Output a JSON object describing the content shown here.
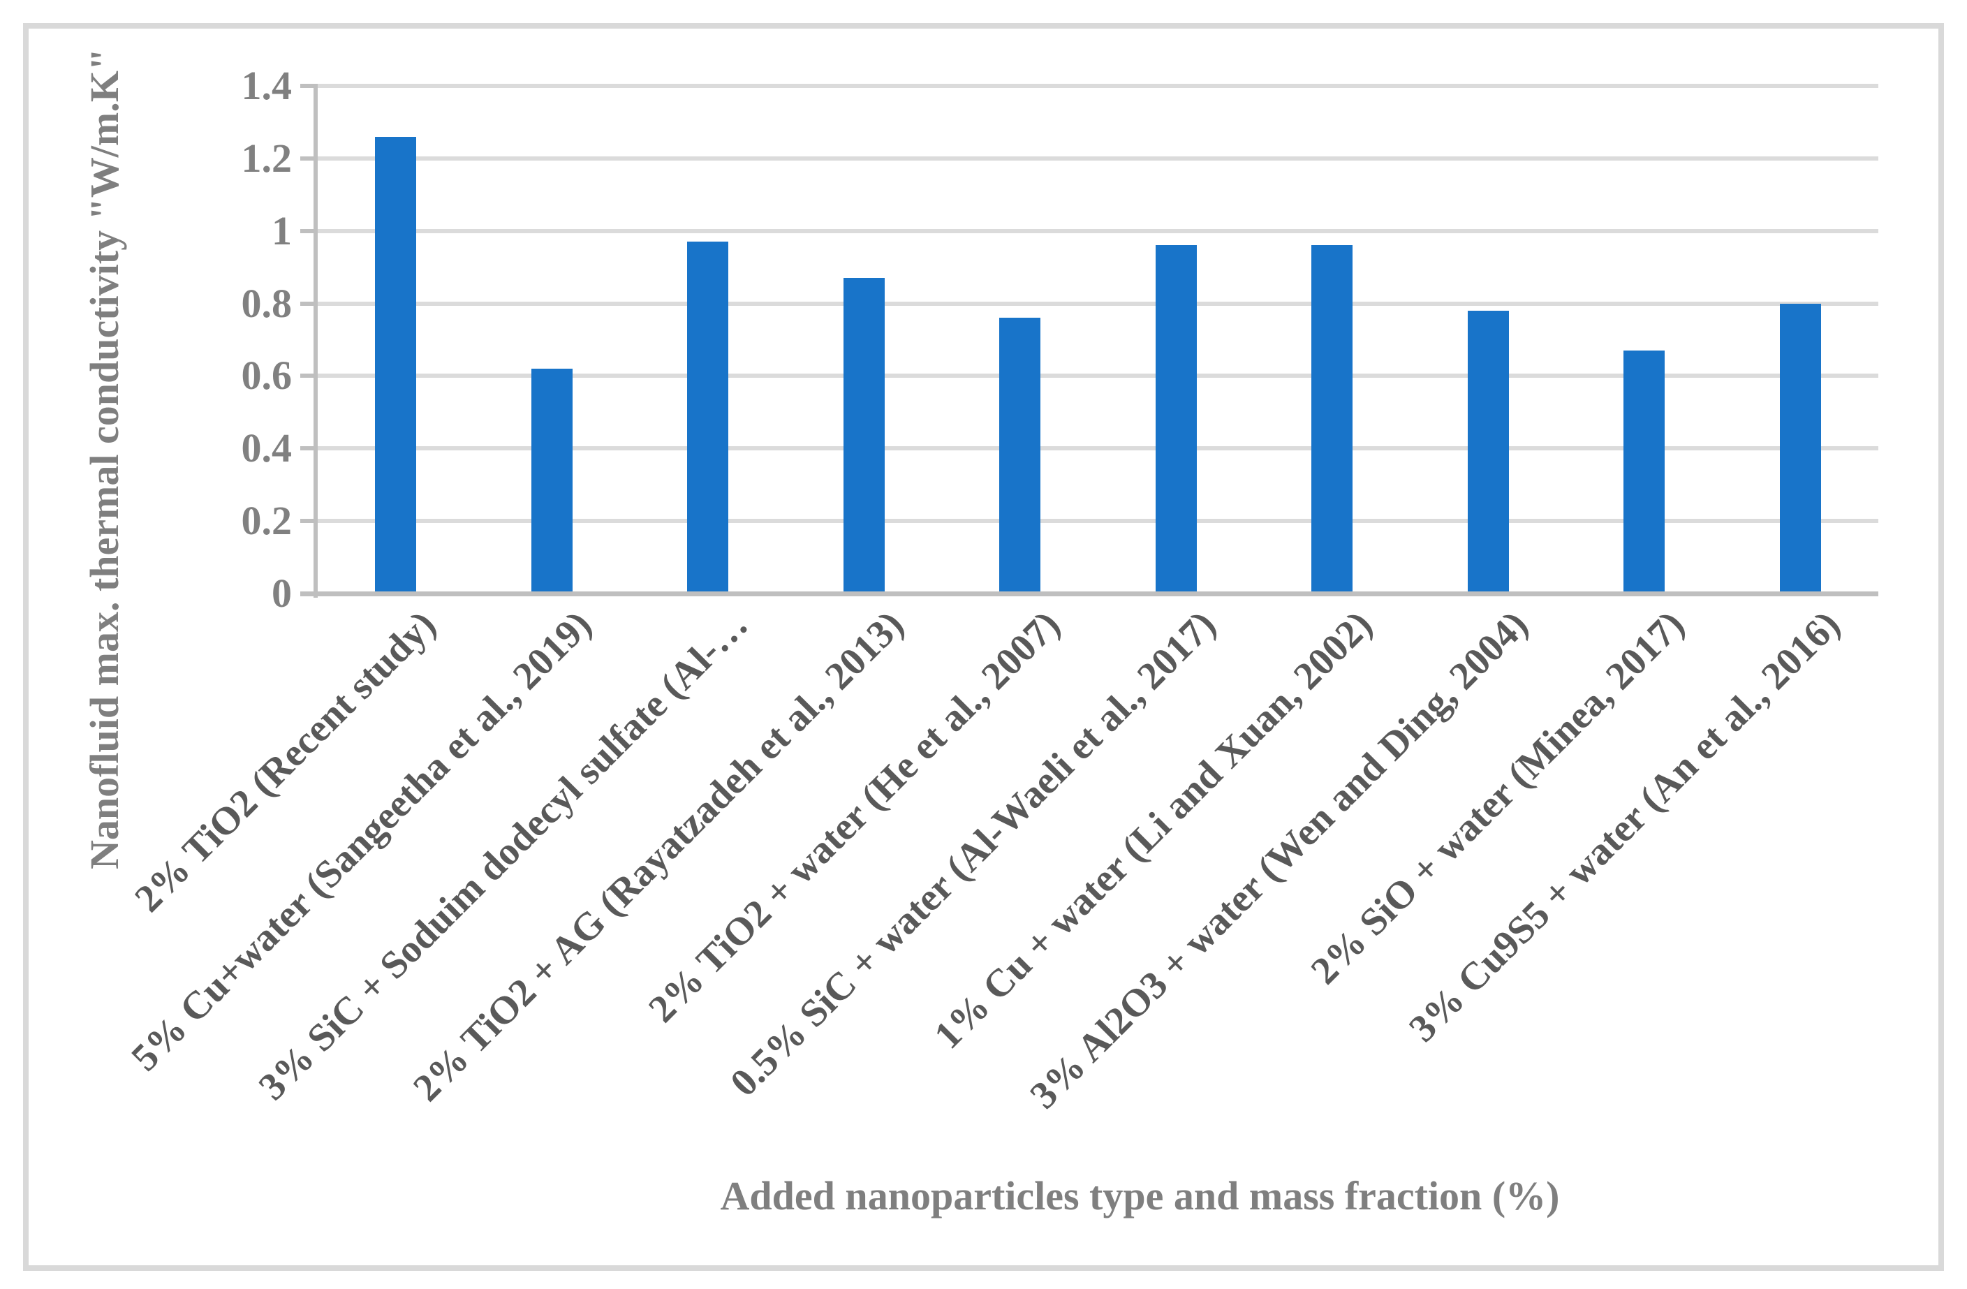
{
  "figure": {
    "background": "#FFFFFF",
    "border_color": "#D9D9D9"
  },
  "chart_data": {
    "type": "bar",
    "title": "",
    "xlabel": "Added nanoparticles type and mass fraction (%)",
    "ylabel": "Nanofluid max. thermal conductivity \"W/m.K\"",
    "categories": [
      "2% TiO2 (Recent study)",
      "5% Cu+water (Sangeetha et al., 2019)",
      "3% SiC + Soduim dodecyl sulfate (Al-…",
      "2% TiO2 + AG (Rayatzadeh et al., 2013)",
      "2% TiO2 + water (He et al., 2007)",
      "0.5% SiC + water (Al-Waeli et al., 2017)",
      "1% Cu + water (Li and Xuan, 2002)",
      "3% Al2O3 + water (Wen and Ding, 2004)",
      "2% SiO + water (Minea, 2017)",
      "3% Cu9S5 + water (An et al., 2016)"
    ],
    "values": [
      1.26,
      0.62,
      0.97,
      0.87,
      0.76,
      0.96,
      0.96,
      0.78,
      0.67,
      0.8
    ],
    "ylim": [
      0,
      1.4
    ],
    "yticks": [
      0,
      0.2,
      0.4,
      0.6,
      0.8,
      1,
      1.2,
      1.4
    ],
    "ytick_labels": [
      "0",
      "0.2",
      "0.4",
      "0.6",
      "0.8",
      "1",
      "1.2",
      "1.4"
    ],
    "grid": true,
    "legend": false,
    "bar_color": "#1874C9",
    "gridline_color": "#DBDBDB",
    "axis_line_color": "#BFBFBF",
    "tick_label_color": "#808080",
    "category_label_color": "#595959",
    "axis_title_color": "#7F7F7F"
  }
}
